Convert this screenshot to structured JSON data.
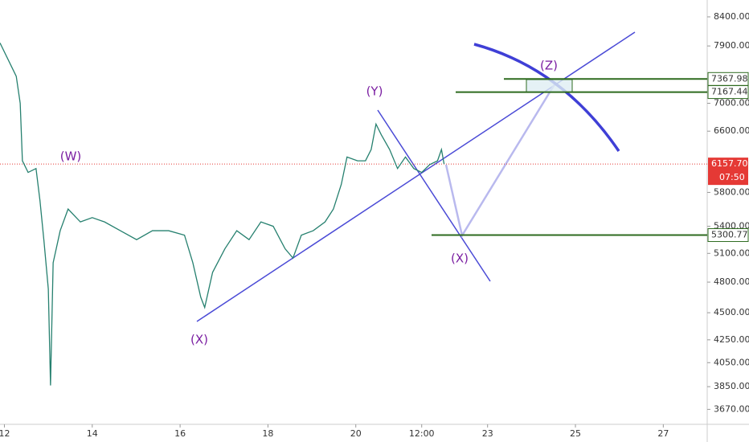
{
  "chart_data": {
    "type": "line",
    "log_scale": true,
    "x": [
      11.9,
      12.27,
      12.36,
      12.41,
      12.54,
      12.72,
      12.81,
      12.9,
      13.0,
      13.05,
      13.11,
      13.27,
      13.45,
      13.73,
      14.0,
      14.28,
      14.64,
      15.01,
      15.37,
      15.74,
      16.1,
      16.29,
      16.47,
      16.56,
      16.74,
      17.02,
      17.29,
      17.57,
      17.84,
      18.12,
      18.39,
      18.57,
      18.76,
      19.03,
      19.3,
      19.49,
      19.67,
      19.8,
      20.04,
      20.22,
      20.35,
      20.46,
      20.58,
      20.77,
      20.95,
      21.13,
      21.32,
      21.5,
      21.68,
      21.86,
      21.95,
      22.01
    ],
    "series": [
      {
        "color": "#26806f",
        "values": [
          7950,
          7410,
          7000,
          6200,
          6050,
          6100,
          5700,
          5240,
          4730,
          3860,
          5000,
          5350,
          5600,
          5450,
          5500,
          5450,
          5350,
          5250,
          5350,
          5350,
          5300,
          5000,
          4650,
          4550,
          4900,
          5150,
          5350,
          5250,
          5450,
          5400,
          5150,
          5050,
          5300,
          5350,
          5450,
          5600,
          5900,
          6250,
          6200,
          6200,
          6350,
          6700,
          6550,
          6350,
          6100,
          6250,
          6100,
          6050,
          6150,
          6200,
          6350,
          6157.7
        ]
      }
    ],
    "xlim": [
      11.9,
      28.0
    ],
    "xticks": [
      12,
      14,
      16,
      18,
      20,
      {
        "value": 21.5,
        "label": "12:00"
      },
      23,
      25,
      27
    ],
    "ylim": [
      3556,
      8704
    ],
    "yticks": [
      {
        "value": 8400,
        "label": "8400.00"
      },
      {
        "value": 7900,
        "label": "7900.00"
      },
      {
        "value": 7000,
        "label": "7000.00"
      },
      {
        "value": 6600,
        "label": "6600.00"
      },
      {
        "value": 5800,
        "label": "5800.00"
      },
      {
        "value": 5400,
        "label": "5400.00"
      },
      {
        "value": 5100,
        "label": "5100.00"
      },
      {
        "value": 4800,
        "label": "4800.00"
      },
      {
        "value": 4500,
        "label": "4500.00"
      },
      {
        "value": 4250,
        "label": "4250.00"
      },
      {
        "value": 4050,
        "label": "4050.00"
      },
      {
        "value": 3850,
        "label": "3850.00"
      },
      {
        "value": 3670,
        "label": "3670.00"
      }
    ],
    "levels": [
      {
        "value": 7367.98,
        "color": "#2e6b1f"
      },
      {
        "value": 7167.44,
        "color": "#2e6b1f"
      },
      {
        "value": 5300.77,
        "color": "#2e6b1f"
      }
    ],
    "last_price": {
      "value": 6157.7,
      "label": "6157.70",
      "color": "#e53935"
    },
    "countdown": "07:50",
    "annotations": [
      "(W)",
      "(X)",
      "(Y)",
      "(X)",
      "(Z)"
    ]
  }
}
